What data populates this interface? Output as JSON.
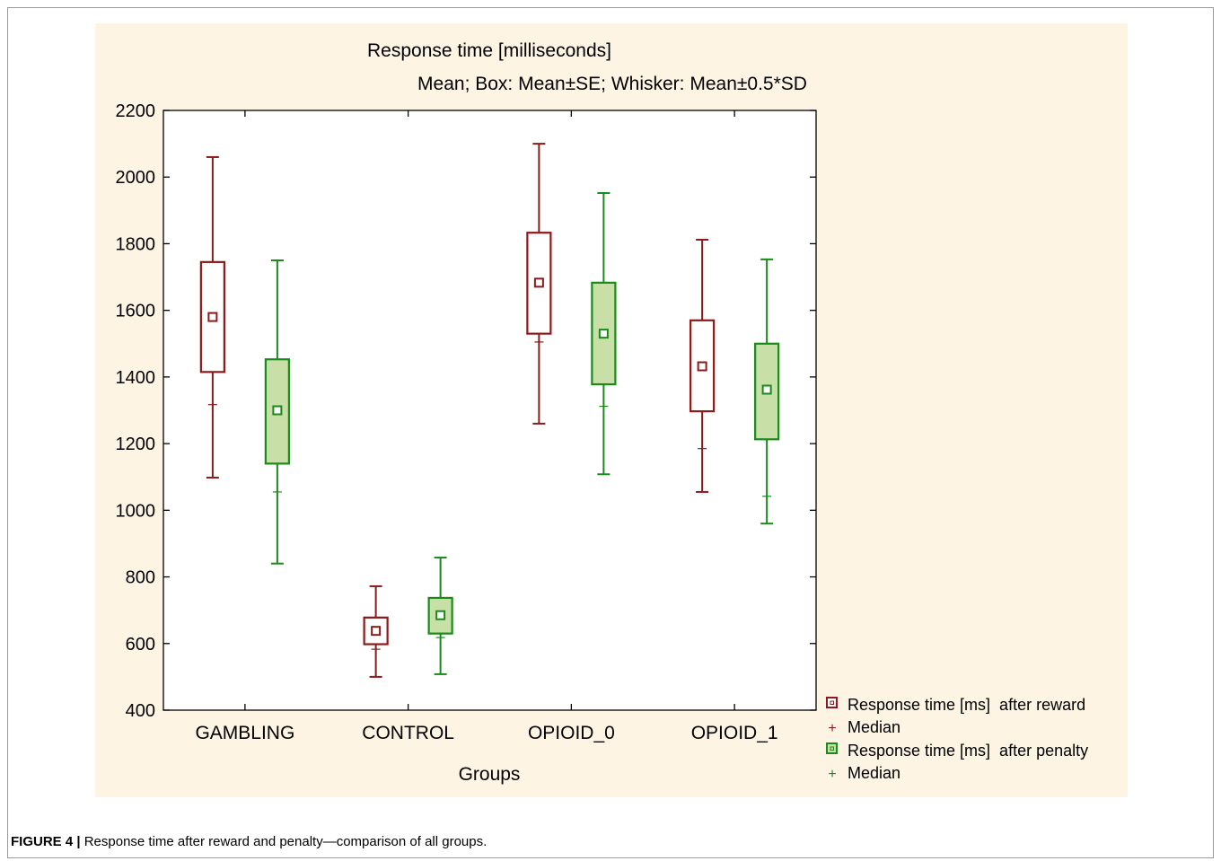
{
  "figure": {
    "label": "FIGURE 4 |",
    "caption": " Response time after reward and penalty—comparison of all groups."
  },
  "chart_data": {
    "type": "boxplot",
    "title": "Response time [milliseconds]",
    "subtitle": "Mean; Box: Mean±SE; Whisker: Mean±0.5*SD",
    "xlabel": "Groups",
    "ylabel": "",
    "ylim": [
      400,
      2200
    ],
    "yticks": [
      400,
      600,
      800,
      1000,
      1200,
      1400,
      1600,
      1800,
      2000,
      2200
    ],
    "categories": [
      "GAMBLING",
      "CONTROL",
      "OPIOID_0",
      "OPIOID_1"
    ],
    "grid": false,
    "legend_position": "bottom-right",
    "series": [
      {
        "name": "Response time [ms]  after reward",
        "color": "#8b1a1a",
        "fill": "#ffffff",
        "median_label": "Median",
        "mean": [
          1580,
          638,
          1683,
          1432
        ],
        "box_low": [
          1415,
          598,
          1530,
          1297
        ],
        "box_high": [
          1745,
          678,
          1833,
          1570
        ],
        "whisker_low": [
          1098,
          500,
          1260,
          1055
        ],
        "whisker_high": [
          2060,
          772,
          2100,
          1812
        ],
        "median": [
          1317,
          583,
          1505,
          1185
        ]
      },
      {
        "name": "Response time [ms]  after penalty",
        "color": "#1a8a1a",
        "fill": "#c8e0a8",
        "median_label": "Median",
        "mean": [
          1300,
          685,
          1530,
          1362
        ],
        "box_low": [
          1140,
          630,
          1378,
          1213
        ],
        "box_high": [
          1453,
          737,
          1683,
          1500
        ],
        "whisker_low": [
          840,
          508,
          1108,
          960
        ],
        "whisker_high": [
          1750,
          858,
          1952,
          1753
        ],
        "median": [
          1055,
          618,
          1312,
          1042
        ]
      }
    ]
  }
}
